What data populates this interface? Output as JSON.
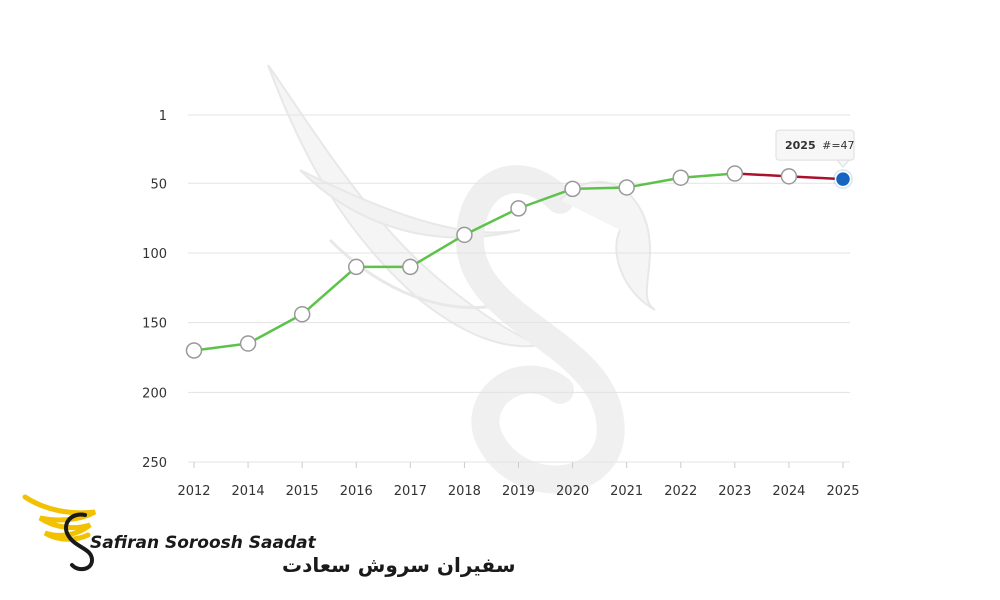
{
  "chart_data": {
    "type": "line",
    "title": "",
    "xlabel": "",
    "ylabel": "",
    "y_inverted": true,
    "ylim": [
      1,
      250
    ],
    "y_ticks": [
      1,
      50,
      100,
      150,
      200,
      250
    ],
    "y_tick_labels": [
      "1",
      "50",
      "100",
      "150",
      "200",
      "250"
    ],
    "grid": "horizontal",
    "categories": [
      "2012",
      "2014",
      "2015",
      "2016",
      "2017",
      "2018",
      "2019",
      "2020",
      "2021",
      "2022",
      "2023",
      "2024",
      "2025"
    ],
    "values": [
      170,
      165,
      144,
      110,
      110,
      87,
      68,
      54,
      53,
      46,
      43,
      45,
      47
    ],
    "line_colors": {
      "main": "#5cc24a",
      "recent": "#a8122e"
    },
    "recent_segment_start_index": 10,
    "marker_color": "#ffffff",
    "marker_stroke": "#999999",
    "highlight_color": "#1565c0",
    "tooltip": {
      "year": "2025",
      "label": "#=47"
    }
  },
  "logo": {
    "text_en": "Safiran Soroosh Saadat",
    "text_fa": "سفیران سروش سعادت",
    "accent_color": "#f2c200"
  }
}
